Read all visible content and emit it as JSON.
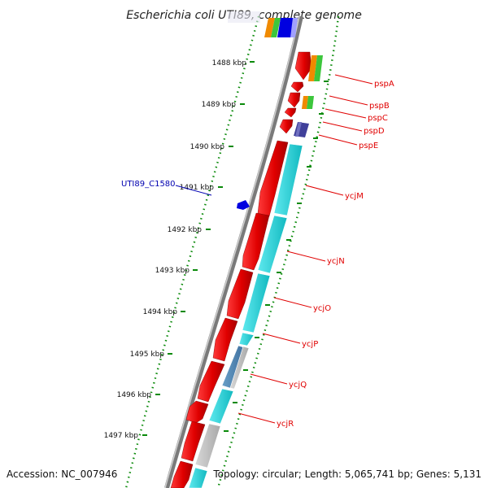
{
  "title": "Escherichia coli UTI89, complete genome",
  "footer": {
    "accession": "Accession: NC_007946",
    "topology": "Topology: circular; Length: 5,065,741 bp; Genes: 5,131"
  },
  "ticks": [
    "1488 kbp",
    "1489 kbp",
    "1490 kbp",
    "1491 kbp",
    "1492 kbp",
    "1493 kbp",
    "1494 kbp",
    "1495 kbp",
    "1496 kbp",
    "1497 kbp"
  ],
  "genes": [
    {
      "name": "pspA"
    },
    {
      "name": "pspB"
    },
    {
      "name": "pspC"
    },
    {
      "name": "pspD"
    },
    {
      "name": "pspE"
    },
    {
      "name": "ycjM"
    },
    {
      "name": "ycjN"
    },
    {
      "name": "ycjO"
    },
    {
      "name": "ycjP"
    },
    {
      "name": "ycjQ"
    },
    {
      "name": "ycjR"
    }
  ],
  "other_features": [
    {
      "name": "UTI89_C1580"
    }
  ],
  "colors": {
    "gene_arrow": "#e00000",
    "gene_label": "#e00000",
    "locus_label": "#0000b0",
    "cyan_track": "#1ccfd6",
    "orange_track": "#f08a00",
    "green_track": "#3cc63c",
    "purple_track": "#40409a",
    "grey_track": "#b8b8b8",
    "backbone": "#7a7a7a",
    "tick_green": "#0a8a0a"
  }
}
